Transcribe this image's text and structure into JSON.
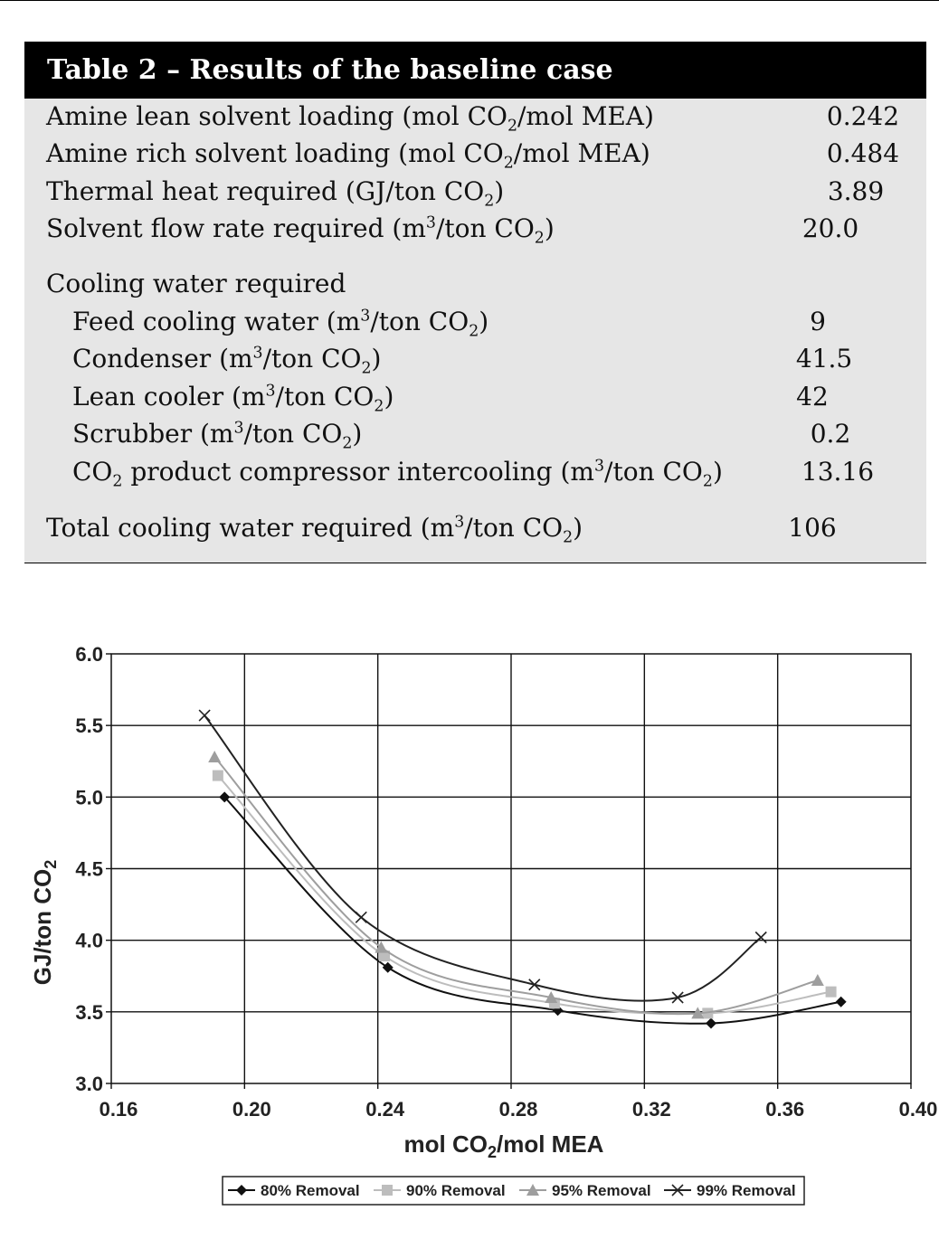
{
  "table": {
    "title": "Table 2 – Results of the baseline case",
    "rows": [
      {
        "label": "Amine lean solvent loading (mol CO₂/mol MEA)",
        "value": "0.242"
      },
      {
        "label": "Amine rich solvent loading (mol CO₂/mol MEA)",
        "value": "0.484"
      },
      {
        "label": "Thermal heat required (GJ/ton CO₂)",
        "value": "3.89"
      },
      {
        "label": "Solvent flow rate required (m³/ton CO₂)",
        "value": "20.0"
      }
    ],
    "cooling_header": "Cooling water required",
    "cooling_rows": [
      {
        "label": "Feed cooling water (m³/ton CO₂)",
        "value": "9"
      },
      {
        "label": "Condenser (m³/ton CO₂)",
        "value": "41.5"
      },
      {
        "label": "Lean cooler (m³/ton CO₂)",
        "value": "42"
      },
      {
        "label": "Scrubber (m³/ton CO₂)",
        "value": "0.2"
      },
      {
        "label": "CO₂ product compressor intercooling (m³/ton CO₂)",
        "value": "13.16"
      }
    ],
    "total": {
      "label": "Total cooling water required (m³/ton CO₂)",
      "value": "106"
    }
  },
  "chart_data": {
    "type": "line",
    "xlabel": "mol CO₂/mol MEA",
    "ylabel": "GJ/ton CO₂",
    "xlim": [
      0.16,
      0.4
    ],
    "ylim": [
      3.0,
      6.0
    ],
    "xticks": [
      "0.16",
      "0.20",
      "0.24",
      "0.28",
      "0.32",
      "0.36",
      "0.40"
    ],
    "yticks": [
      "3.0",
      "3.5",
      "4.0",
      "4.5",
      "5.0",
      "5.5",
      "6.0"
    ],
    "grid": true,
    "legend_position": "bottom",
    "series": [
      {
        "name": "80% Removal",
        "marker": "diamond",
        "color": "#111111",
        "x": [
          0.194,
          0.243,
          0.294,
          0.34,
          0.379
        ],
        "y": [
          5.0,
          3.81,
          3.51,
          3.42,
          3.57
        ]
      },
      {
        "name": "90% Removal",
        "marker": "square",
        "color": "#bdbdbd",
        "x": [
          0.192,
          0.242,
          0.293,
          0.339,
          0.376
        ],
        "y": [
          5.15,
          3.89,
          3.56,
          3.49,
          3.64
        ]
      },
      {
        "name": "95% Removal",
        "marker": "triangle",
        "color": "#9e9e9e",
        "x": [
          0.191,
          0.241,
          0.292,
          0.336,
          0.372
        ],
        "y": [
          5.28,
          3.95,
          3.6,
          3.49,
          3.72
        ]
      },
      {
        "name": "99% Removal",
        "marker": "x",
        "color": "#222222",
        "x": [
          0.188,
          0.235,
          0.287,
          0.33,
          0.355
        ],
        "y": [
          5.57,
          4.16,
          3.69,
          3.6,
          4.02
        ]
      }
    ]
  }
}
